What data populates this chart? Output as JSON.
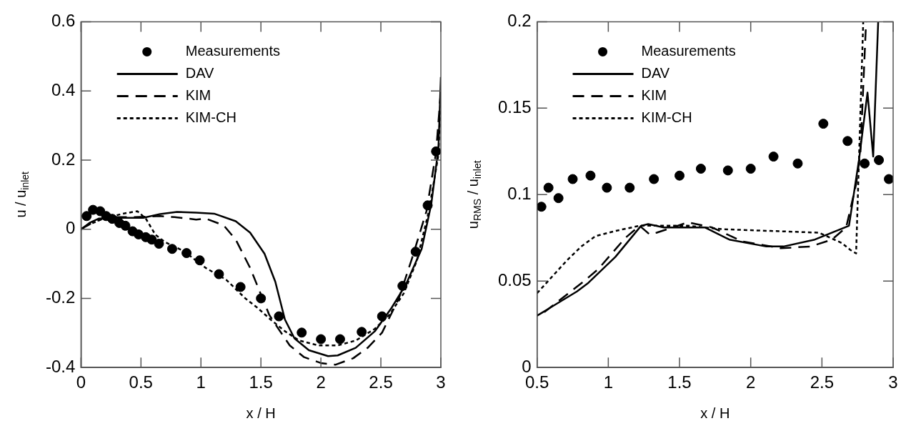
{
  "chart_data": [
    {
      "type": "line",
      "xlabel": "x / H",
      "ylabel": "u / u$_{inlet}$",
      "xlim": [
        0,
        3
      ],
      "ylim": [
        -0.4,
        0.6
      ],
      "xticks": [
        0,
        0.5,
        1,
        1.5,
        2,
        2.5,
        3
      ],
      "yticks": [
        -0.4,
        -0.2,
        0,
        0.2,
        0.4,
        0.6
      ],
      "legend": "top left",
      "series": [
        {
          "name": "Measurements",
          "type": "scatter",
          "marker": "circle",
          "color": "#000000",
          "x": [
            0.047,
            0.1,
            0.16,
            0.21,
            0.26,
            0.32,
            0.37,
            0.43,
            0.48,
            0.54,
            0.59,
            0.65,
            0.76,
            0.88,
            0.99,
            1.15,
            1.33,
            1.5,
            1.65,
            1.84,
            2.0,
            2.16,
            2.34,
            2.51,
            2.68,
            2.79,
            2.89,
            2.96
          ],
          "values": [
            0.038,
            0.056,
            0.052,
            0.038,
            0.03,
            0.018,
            0.01,
            -0.006,
            -0.015,
            -0.023,
            -0.03,
            -0.042,
            -0.057,
            -0.069,
            -0.09,
            -0.13,
            -0.167,
            -0.2,
            -0.252,
            -0.299,
            -0.318,
            -0.318,
            -0.297,
            -0.252,
            -0.164,
            -0.065,
            0.069,
            0.225
          ]
        },
        {
          "name": "DAV",
          "line_style": "solid",
          "color": "#000000",
          "x": [
            0,
            0.07,
            0.15,
            0.31,
            0.52,
            0.66,
            0.8,
            0.96,
            1.11,
            1.29,
            1.41,
            1.53,
            1.62,
            1.7,
            1.78,
            1.9,
            2.06,
            2.14,
            2.29,
            2.45,
            2.59,
            2.71,
            2.84,
            2.92,
            2.98,
            3.0
          ],
          "values": [
            0,
            0.018,
            0.031,
            0.033,
            0.033,
            0.044,
            0.05,
            0.048,
            0.045,
            0.023,
            -0.01,
            -0.071,
            -0.152,
            -0.261,
            -0.316,
            -0.35,
            -0.367,
            -0.365,
            -0.343,
            -0.295,
            -0.227,
            -0.159,
            -0.057,
            0.072,
            0.235,
            0.44
          ]
        },
        {
          "name": "KIM",
          "line_style": "dashed",
          "color": "#000000",
          "x": [
            0,
            0.09,
            0.21,
            0.45,
            0.66,
            0.78,
            0.96,
            1.04,
            1.19,
            1.29,
            1.41,
            1.49,
            1.57,
            1.64,
            1.74,
            1.86,
            2.0,
            2.12,
            2.27,
            2.39,
            2.51,
            2.65,
            2.76,
            2.88,
            2.96,
            3.0
          ],
          "values": [
            0,
            0.018,
            0.035,
            0.035,
            0.038,
            0.035,
            0.028,
            0.031,
            0.011,
            -0.03,
            -0.112,
            -0.18,
            -0.248,
            -0.285,
            -0.336,
            -0.37,
            -0.387,
            -0.392,
            -0.373,
            -0.343,
            -0.299,
            -0.2,
            -0.084,
            0.052,
            0.222,
            0.4
          ]
        },
        {
          "name": "KIM-CH",
          "line_style": "dotted",
          "color": "#000000",
          "x": [
            0,
            0.07,
            0.19,
            0.35,
            0.47,
            0.54,
            0.62,
            0.7,
            0.86,
            1.04,
            1.21,
            1.37,
            1.47,
            1.58,
            1.7,
            1.82,
            1.98,
            2.14,
            2.29,
            2.45,
            2.57,
            2.69,
            2.8,
            2.9,
            2.98,
            3.0
          ],
          "values": [
            0,
            0.014,
            0.031,
            0.045,
            0.052,
            0.031,
            -0.016,
            -0.037,
            -0.064,
            -0.112,
            -0.146,
            -0.2,
            -0.227,
            -0.261,
            -0.295,
            -0.322,
            -0.336,
            -0.336,
            -0.322,
            -0.288,
            -0.248,
            -0.186,
            -0.091,
            0.052,
            0.215,
            0.4
          ]
        }
      ]
    },
    {
      "type": "line",
      "xlabel": "x / H",
      "ylabel": "u$_{RMS}$ / u$_{inlet}$",
      "xlim": [
        0.5,
        3
      ],
      "ylim": [
        0,
        0.2
      ],
      "xticks": [
        0.5,
        1,
        1.5,
        2,
        2.5,
        3
      ],
      "yticks": [
        0,
        0.05,
        0.1,
        0.15,
        0.2
      ],
      "legend": "top left",
      "series": [
        {
          "name": "Measurements",
          "type": "scatter",
          "marker": "circle",
          "color": "#000000",
          "x": [
            0.53,
            0.58,
            0.65,
            0.75,
            0.875,
            0.99,
            1.15,
            1.32,
            1.5,
            1.65,
            1.84,
            2.0,
            2.16,
            2.33,
            2.51,
            2.68,
            2.8,
            2.9,
            2.97
          ],
          "values": [
            0.093,
            0.104,
            0.098,
            0.109,
            0.111,
            0.104,
            0.104,
            0.109,
            0.111,
            0.115,
            0.114,
            0.115,
            0.122,
            0.118,
            0.141,
            0.131,
            0.118,
            0.12,
            0.109
          ]
        },
        {
          "name": "DAV",
          "line_style": "solid",
          "color": "#000000",
          "x": [
            0.5,
            0.6,
            0.78,
            0.86,
            1.05,
            1.23,
            1.28,
            1.39,
            1.68,
            1.85,
            2.11,
            2.23,
            2.45,
            2.69,
            2.76,
            2.82,
            2.86,
            2.895
          ],
          "values": [
            0.03,
            0.035,
            0.044,
            0.049,
            0.064,
            0.082,
            0.083,
            0.081,
            0.081,
            0.074,
            0.07,
            0.07,
            0.074,
            0.082,
            0.12,
            0.159,
            0.122,
            0.2
          ]
        },
        {
          "name": "KIM",
          "line_style": "dashed",
          "color": "#000000",
          "x": [
            0.55,
            0.83,
            0.93,
            1.12,
            1.22,
            1.29,
            1.34,
            1.56,
            1.73,
            1.94,
            2.21,
            2.42,
            2.57,
            2.67,
            2.74,
            2.77,
            2.81
          ],
          "values": [
            0.032,
            0.05,
            0.057,
            0.075,
            0.082,
            0.077,
            0.078,
            0.084,
            0.081,
            0.073,
            0.069,
            0.07,
            0.074,
            0.081,
            0.106,
            0.124,
            0.2
          ]
        },
        {
          "name": "KIM-CH",
          "line_style": "dotted",
          "color": "#000000",
          "x": [
            0.5,
            0.61,
            0.71,
            0.81,
            0.91,
            1.05,
            1.22,
            1.56,
            1.8,
            2.14,
            2.48,
            2.64,
            2.7,
            2.74,
            2.76,
            2.79
          ],
          "values": [
            0.043,
            0.053,
            0.062,
            0.07,
            0.076,
            0.079,
            0.082,
            0.082,
            0.08,
            0.079,
            0.078,
            0.072,
            0.068,
            0.066,
            0.12,
            0.2
          ]
        }
      ]
    }
  ]
}
